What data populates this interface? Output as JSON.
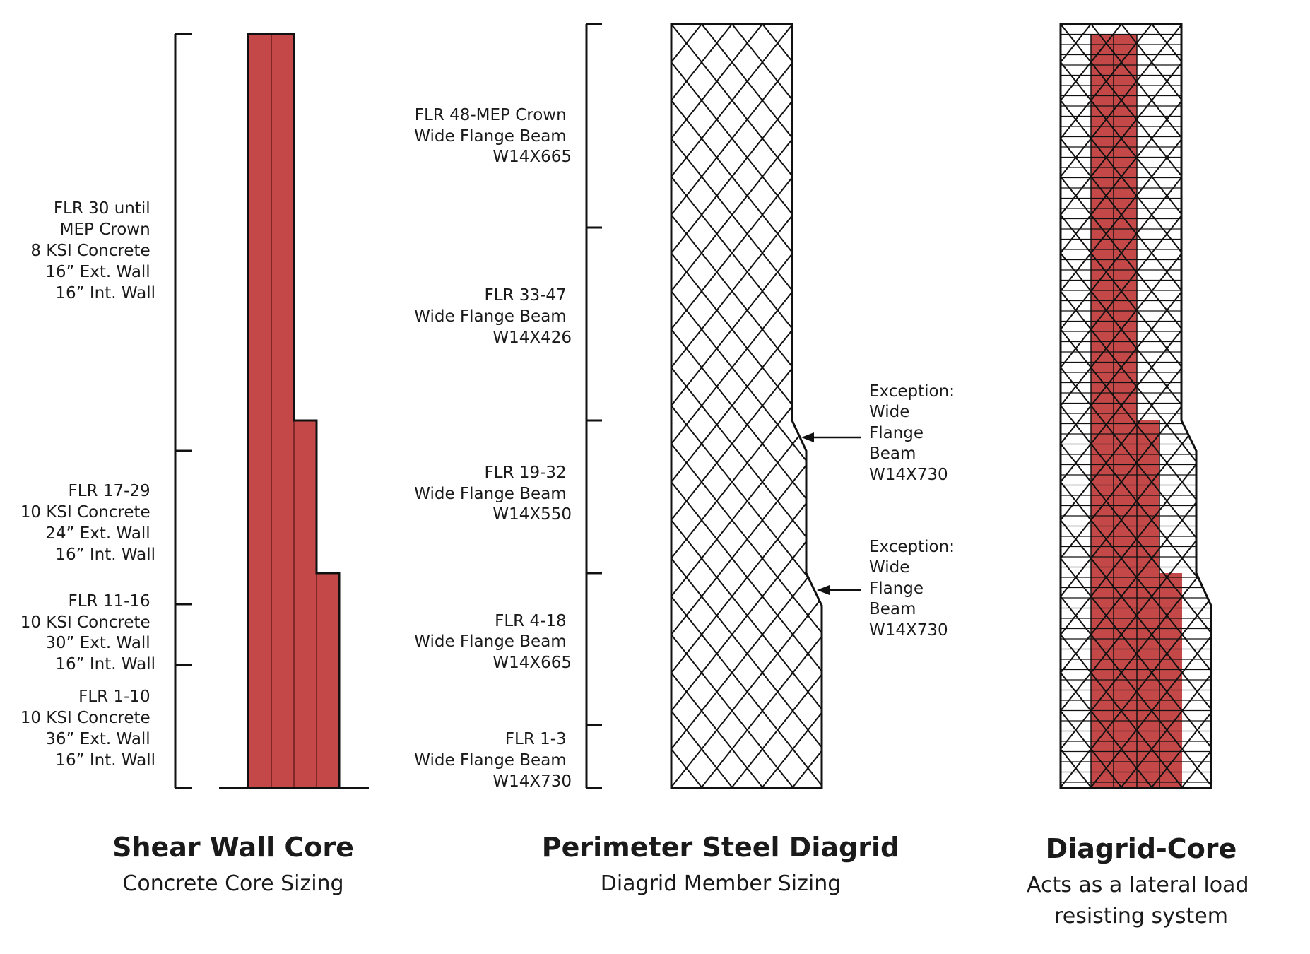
{
  "colors": {
    "core_red": "#c54848",
    "ink": "#111111"
  },
  "panels": {
    "shear_wall": {
      "title": "Shear Wall Core",
      "subtitle": "Concrete Core Sizing",
      "labels": [
        [
          "FLR 30 until",
          "MEP Crown",
          "8 KSI Concrete",
          "16” Ext. Wall",
          "16” Int. Wall"
        ],
        [
          "FLR 17-29",
          "10 KSI Concrete",
          "24” Ext. Wall",
          "16” Int. Wall"
        ],
        [
          "FLR 11-16",
          "10 KSI Concrete",
          "30” Ext. Wall",
          "16” Int. Wall"
        ],
        [
          "FLR 1-10",
          "10 KSI Concrete",
          "36” Ext. Wall",
          "16” Int. Wall"
        ]
      ]
    },
    "diagrid": {
      "title": "Perimeter Steel Diagrid",
      "subtitle": "Diagrid Member Sizing",
      "labels": [
        [
          "FLR 48-MEP Crown",
          "Wide Flange Beam",
          "W14X665"
        ],
        [
          "FLR 33-47",
          "Wide Flange Beam",
          "W14X426"
        ],
        [
          "FLR 19-32",
          "Wide Flange Beam",
          "W14X550"
        ],
        [
          "FLR 4-18",
          "Wide Flange Beam",
          "W14X665"
        ],
        [
          "FLR 1-3",
          "Wide Flange Beam",
          "W14X730"
        ]
      ],
      "exceptions": [
        [
          "Exception:",
          "Wide",
          "Flange",
          "Beam",
          "W14X730"
        ],
        [
          "Exception:",
          "Wide",
          "Flange",
          "Beam",
          "W14X730"
        ]
      ]
    },
    "diagrid_core": {
      "title": "Diagrid-Core",
      "subtitle_lines": [
        "Acts as a lateral load",
        "resisting system"
      ]
    }
  }
}
